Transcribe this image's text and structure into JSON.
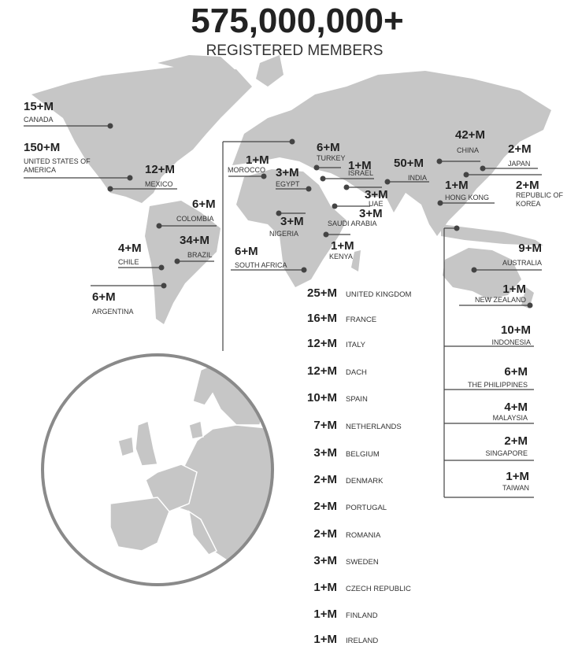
{
  "header": {
    "total": "575,000,000+",
    "subtitle": "REGISTERED MEMBERS"
  },
  "colors": {
    "land": "#c6c6c6",
    "line": "#444444",
    "circle_border": "#8a8a8a"
  },
  "countries": [
    {
      "count": "15+M",
      "name": "CANADA"
    },
    {
      "count": "150+M",
      "name": "UNITED STATES OF AMERICA"
    },
    {
      "count": "12+M",
      "name": "MEXICO"
    },
    {
      "count": "6+M",
      "name": "COLOMBIA"
    },
    {
      "count": "34+M",
      "name": "BRAZIL"
    },
    {
      "count": "4+M",
      "name": "CHILE"
    },
    {
      "count": "6+M",
      "name": "ARGENTINA"
    },
    {
      "count": "1+M",
      "name": "MOROCCO"
    },
    {
      "count": "3+M",
      "name": "EGYPT"
    },
    {
      "count": "6+M",
      "name": "TURKEY"
    },
    {
      "count": "1+M",
      "name": "ISRAEL"
    },
    {
      "count": "50+M",
      "name": "INDIA"
    },
    {
      "count": "3+M",
      "name": "UAE"
    },
    {
      "count": "3+M",
      "name": "SAUDI ARABIA"
    },
    {
      "count": "3+M",
      "name": "NIGERIA"
    },
    {
      "count": "1+M",
      "name": "KENYA"
    },
    {
      "count": "6+M",
      "name": "SOUTH AFRICA"
    },
    {
      "count": "42+M",
      "name": "CHINA"
    },
    {
      "count": "2+M",
      "name": "JAPAN"
    },
    {
      "count": "2+M",
      "name": "REPUBLIC OF KOREA"
    },
    {
      "count": "1+M",
      "name": "HONG KONG"
    },
    {
      "count": "9+M",
      "name": "AUSTRALIA"
    },
    {
      "count": "1+M",
      "name": "NEW ZEALAND"
    },
    {
      "count": "10+M",
      "name": "INDONESIA"
    },
    {
      "count": "6+M",
      "name": "THE PHILIPPINES"
    },
    {
      "count": "4+M",
      "name": "MALAYSIA"
    },
    {
      "count": "2+M",
      "name": "SINGAPORE"
    },
    {
      "count": "1+M",
      "name": "TAIWAN"
    }
  ],
  "europe": [
    {
      "count": "25+M",
      "name": "UNITED KINGDOM"
    },
    {
      "count": "16+M",
      "name": "FRANCE"
    },
    {
      "count": "12+M",
      "name": "ITALY"
    },
    {
      "count": "12+M",
      "name": "DACH"
    },
    {
      "count": "10+M",
      "name": "SPAIN"
    },
    {
      "count": "7+M",
      "name": "NETHERLANDS"
    },
    {
      "count": "3+M",
      "name": "BELGIUM"
    },
    {
      "count": "2+M",
      "name": "DENMARK"
    },
    {
      "count": "2+M",
      "name": "PORTUGAL"
    },
    {
      "count": "2+M",
      "name": "ROMANIA"
    },
    {
      "count": "3+M",
      "name": "SWEDEN"
    },
    {
      "count": "1+M",
      "name": "CZECH REPUBLIC"
    },
    {
      "count": "1+M",
      "name": "FINLAND"
    },
    {
      "count": "1+M",
      "name": "IRELAND"
    }
  ]
}
